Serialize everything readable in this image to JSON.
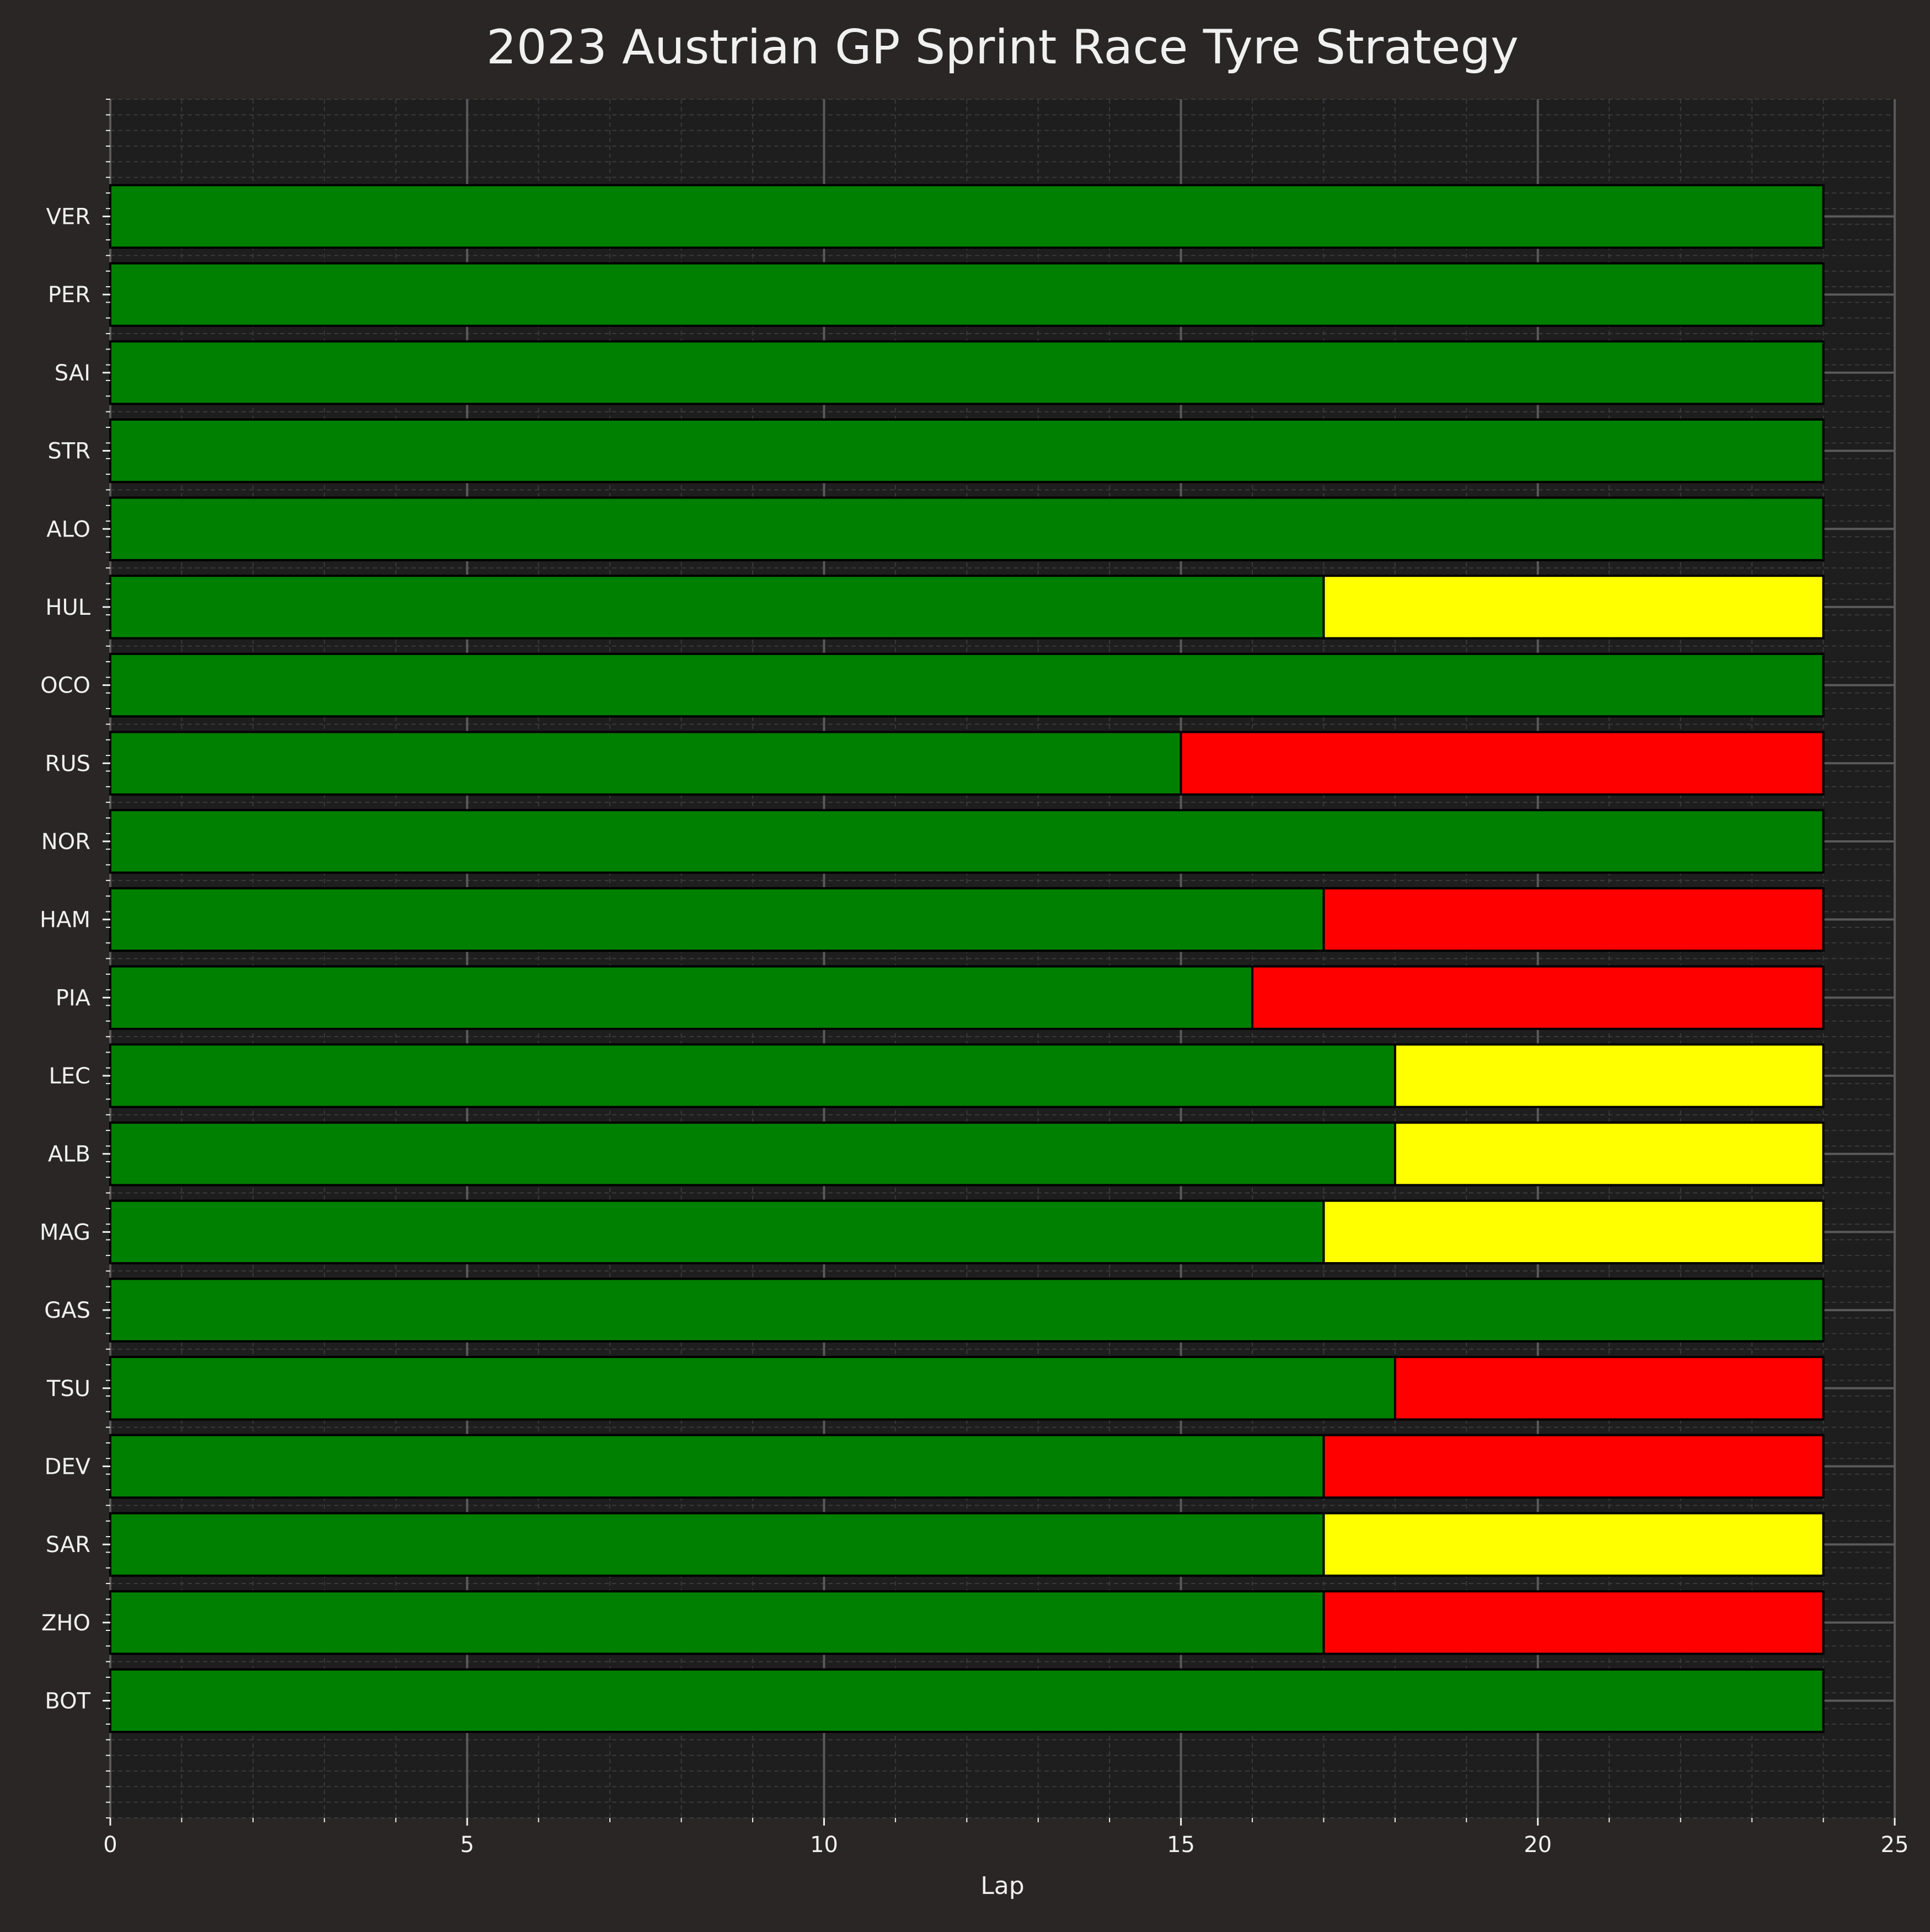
{
  "chart_data": {
    "type": "bar",
    "orientation": "horizontal",
    "stacked": true,
    "title": "2023 Austrian GP Sprint Race Tyre Strategy",
    "xlabel": "Lap",
    "ylabel": "",
    "xlim": [
      0,
      25
    ],
    "xticks": [
      "0",
      "5",
      "10",
      "15",
      "20",
      "25"
    ],
    "grid": true,
    "legend": "none",
    "colors": {
      "background": "#292625",
      "plot_background": "#1e1e1e",
      "text": "#f0f0f0",
      "major_grid": "#5a5a5a",
      "minor_grid": "#3a3a3a",
      "bar_edge": "#000000"
    },
    "compound_colors": {
      "medium": "#ffff00",
      "soft": "#ff0000",
      "green": "#008000"
    },
    "drivers": [
      {
        "name": "VER",
        "stints": [
          {
            "compound": "green",
            "start": 0,
            "end": 24
          }
        ]
      },
      {
        "name": "PER",
        "stints": [
          {
            "compound": "green",
            "start": 0,
            "end": 24
          }
        ]
      },
      {
        "name": "SAI",
        "stints": [
          {
            "compound": "green",
            "start": 0,
            "end": 24
          }
        ]
      },
      {
        "name": "STR",
        "stints": [
          {
            "compound": "green",
            "start": 0,
            "end": 24
          }
        ]
      },
      {
        "name": "ALO",
        "stints": [
          {
            "compound": "green",
            "start": 0,
            "end": 24
          }
        ]
      },
      {
        "name": "HUL",
        "stints": [
          {
            "compound": "green",
            "start": 0,
            "end": 17
          },
          {
            "compound": "medium",
            "start": 17,
            "end": 24
          }
        ]
      },
      {
        "name": "OCO",
        "stints": [
          {
            "compound": "green",
            "start": 0,
            "end": 24
          }
        ]
      },
      {
        "name": "RUS",
        "stints": [
          {
            "compound": "green",
            "start": 0,
            "end": 15
          },
          {
            "compound": "soft",
            "start": 15,
            "end": 24
          }
        ]
      },
      {
        "name": "NOR",
        "stints": [
          {
            "compound": "green",
            "start": 0,
            "end": 24
          }
        ]
      },
      {
        "name": "HAM",
        "stints": [
          {
            "compound": "green",
            "start": 0,
            "end": 17
          },
          {
            "compound": "soft",
            "start": 17,
            "end": 24
          }
        ]
      },
      {
        "name": "PIA",
        "stints": [
          {
            "compound": "green",
            "start": 0,
            "end": 16
          },
          {
            "compound": "soft",
            "start": 16,
            "end": 24
          }
        ]
      },
      {
        "name": "LEC",
        "stints": [
          {
            "compound": "green",
            "start": 0,
            "end": 18
          },
          {
            "compound": "medium",
            "start": 18,
            "end": 24
          }
        ]
      },
      {
        "name": "ALB",
        "stints": [
          {
            "compound": "green",
            "start": 0,
            "end": 18
          },
          {
            "compound": "medium",
            "start": 18,
            "end": 24
          }
        ]
      },
      {
        "name": "MAG",
        "stints": [
          {
            "compound": "green",
            "start": 0,
            "end": 17
          },
          {
            "compound": "medium",
            "start": 17,
            "end": 24
          }
        ]
      },
      {
        "name": "GAS",
        "stints": [
          {
            "compound": "green",
            "start": 0,
            "end": 24
          }
        ]
      },
      {
        "name": "TSU",
        "stints": [
          {
            "compound": "green",
            "start": 0,
            "end": 18
          },
          {
            "compound": "soft",
            "start": 18,
            "end": 24
          }
        ]
      },
      {
        "name": "DEV",
        "stints": [
          {
            "compound": "green",
            "start": 0,
            "end": 17
          },
          {
            "compound": "soft",
            "start": 17,
            "end": 24
          }
        ]
      },
      {
        "name": "SAR",
        "stints": [
          {
            "compound": "green",
            "start": 0,
            "end": 17
          },
          {
            "compound": "medium",
            "start": 17,
            "end": 24
          }
        ]
      },
      {
        "name": "ZHO",
        "stints": [
          {
            "compound": "green",
            "start": 0,
            "end": 17
          },
          {
            "compound": "soft",
            "start": 17,
            "end": 24
          }
        ]
      },
      {
        "name": "BOT",
        "stints": [
          {
            "compound": "green",
            "start": 0,
            "end": 24
          }
        ]
      }
    ]
  }
}
